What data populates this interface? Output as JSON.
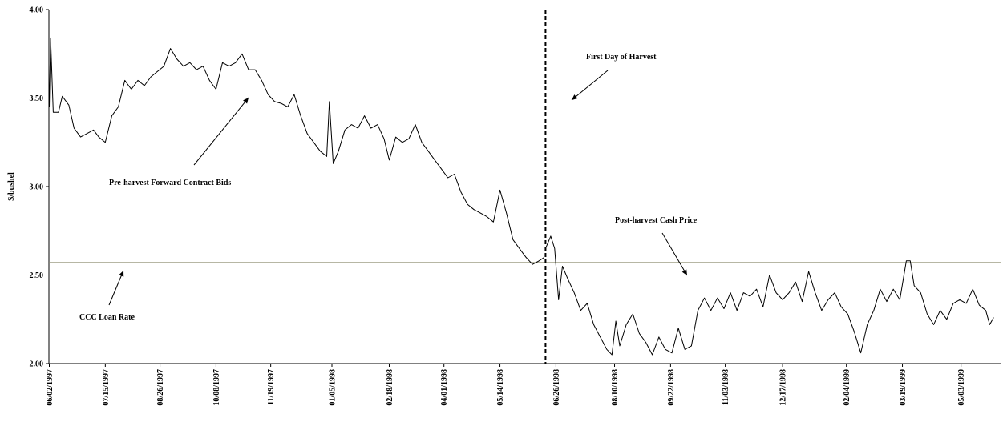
{
  "chart_data": {
    "type": "line",
    "title": "",
    "xlabel": "",
    "ylabel": "$/bushel",
    "ylim": [
      2.0,
      4.0
    ],
    "yticks": [
      "2.00",
      "2.50",
      "3.00",
      "3.50",
      "4.00"
    ],
    "xticks": [
      "06/02/1997",
      "07/15/1997",
      "08/26/1997",
      "10/08/1997",
      "11/19/1997",
      "01/05/1998",
      "02/18/1998",
      "04/01/1998",
      "05/14/1998",
      "06/26/1998",
      "08/10/1998",
      "09/22/1998",
      "11/03/1998",
      "12/17/1998",
      "02/04/1999",
      "03/19/1999",
      "05/03/1999"
    ],
    "grid": false,
    "loan_rate": 2.57,
    "harvest_date": "06/18/1998",
    "series": [
      {
        "name": "Pre-harvest Forward Contract Bids",
        "points": [
          [
            "06/02/1997",
            3.45
          ],
          [
            "06/03/1997",
            3.84
          ],
          [
            "06/05/1997",
            3.42
          ],
          [
            "06/09/1997",
            3.42
          ],
          [
            "06/12/1997",
            3.51
          ],
          [
            "06/17/1997",
            3.46
          ],
          [
            "06/21/1997",
            3.33
          ],
          [
            "06/26/1997",
            3.28
          ],
          [
            "07/01/1997",
            3.3
          ],
          [
            "07/06/1997",
            3.32
          ],
          [
            "07/10/1997",
            3.28
          ],
          [
            "07/15/1997",
            3.25
          ],
          [
            "07/20/1997",
            3.4
          ],
          [
            "07/25/1997",
            3.45
          ],
          [
            "07/30/1997",
            3.6
          ],
          [
            "08/04/1997",
            3.55
          ],
          [
            "08/09/1997",
            3.6
          ],
          [
            "08/14/1997",
            3.57
          ],
          [
            "08/19/1997",
            3.62
          ],
          [
            "08/24/1997",
            3.65
          ],
          [
            "08/29/1997",
            3.68
          ],
          [
            "09/03/1997",
            3.78
          ],
          [
            "09/08/1997",
            3.72
          ],
          [
            "09/13/1997",
            3.68
          ],
          [
            "09/18/1997",
            3.7
          ],
          [
            "09/23/1997",
            3.66
          ],
          [
            "09/28/1997",
            3.68
          ],
          [
            "10/03/1997",
            3.6
          ],
          [
            "10/08/1997",
            3.55
          ],
          [
            "10/13/1997",
            3.7
          ],
          [
            "10/18/1997",
            3.68
          ],
          [
            "10/23/1997",
            3.7
          ],
          [
            "10/28/1997",
            3.75
          ],
          [
            "11/02/1997",
            3.66
          ],
          [
            "11/07/1997",
            3.66
          ],
          [
            "11/12/1997",
            3.6
          ],
          [
            "11/17/1997",
            3.52
          ],
          [
            "11/22/1997",
            3.48
          ],
          [
            "11/27/1997",
            3.47
          ],
          [
            "12/02/1997",
            3.45
          ],
          [
            "12/07/1997",
            3.52
          ],
          [
            "12/12/1997",
            3.4
          ],
          [
            "12/17/1997",
            3.3
          ],
          [
            "12/22/1997",
            3.25
          ],
          [
            "12/27/1997",
            3.2
          ],
          [
            "01/01/1998",
            3.17
          ],
          [
            "01/03/1998",
            3.48
          ],
          [
            "01/06/1998",
            3.13
          ],
          [
            "01/10/1998",
            3.2
          ],
          [
            "01/15/1998",
            3.32
          ],
          [
            "01/20/1998",
            3.35
          ],
          [
            "01/25/1998",
            3.33
          ],
          [
            "01/30/1998",
            3.4
          ],
          [
            "02/04/1998",
            3.33
          ],
          [
            "02/09/1998",
            3.35
          ],
          [
            "02/14/1998",
            3.27
          ],
          [
            "02/18/1998",
            3.15
          ],
          [
            "02/23/1998",
            3.28
          ],
          [
            "02/28/1998",
            3.25
          ],
          [
            "03/05/1998",
            3.27
          ],
          [
            "03/10/1998",
            3.35
          ],
          [
            "03/15/1998",
            3.25
          ],
          [
            "03/20/1998",
            3.2
          ],
          [
            "03/25/1998",
            3.15
          ],
          [
            "03/30/1998",
            3.1
          ],
          [
            "04/04/1998",
            3.05
          ],
          [
            "04/09/1998",
            3.07
          ],
          [
            "04/14/1998",
            2.97
          ],
          [
            "04/19/1998",
            2.9
          ],
          [
            "04/24/1998",
            2.87
          ],
          [
            "04/29/1998",
            2.85
          ],
          [
            "05/04/1998",
            2.83
          ],
          [
            "05/09/1998",
            2.8
          ],
          [
            "05/14/1998",
            2.98
          ],
          [
            "05/19/1998",
            2.85
          ],
          [
            "05/24/1998",
            2.7
          ],
          [
            "05/29/1998",
            2.65
          ],
          [
            "06/03/1998",
            2.6
          ],
          [
            "06/08/1998",
            2.56
          ],
          [
            "06/13/1998",
            2.58
          ],
          [
            "06/17/1998",
            2.6
          ]
        ]
      },
      {
        "name": "Post-harvest Cash Price",
        "points": [
          [
            "06/18/1998",
            2.65
          ],
          [
            "06/22/1998",
            2.72
          ],
          [
            "06/25/1998",
            2.65
          ],
          [
            "06/28/1998",
            2.36
          ],
          [
            "07/01/1998",
            2.55
          ],
          [
            "07/05/1998",
            2.48
          ],
          [
            "07/10/1998",
            2.4
          ],
          [
            "07/15/1998",
            2.3
          ],
          [
            "07/20/1998",
            2.34
          ],
          [
            "07/25/1998",
            2.22
          ],
          [
            "07/30/1998",
            2.15
          ],
          [
            "08/04/1998",
            2.08
          ],
          [
            "08/08/1998",
            2.05
          ],
          [
            "08/11/1998",
            2.24
          ],
          [
            "08/14/1998",
            2.1
          ],
          [
            "08/19/1998",
            2.22
          ],
          [
            "08/24/1998",
            2.28
          ],
          [
            "08/29/1998",
            2.17
          ],
          [
            "09/03/1998",
            2.12
          ],
          [
            "09/08/1998",
            2.05
          ],
          [
            "09/13/1998",
            2.15
          ],
          [
            "09/18/1998",
            2.08
          ],
          [
            "09/23/1998",
            2.06
          ],
          [
            "09/28/1998",
            2.2
          ],
          [
            "10/03/1998",
            2.08
          ],
          [
            "10/08/1998",
            2.1
          ],
          [
            "10/13/1998",
            2.3
          ],
          [
            "10/18/1998",
            2.37
          ],
          [
            "10/23/1998",
            2.3
          ],
          [
            "10/28/1998",
            2.37
          ],
          [
            "11/02/1998",
            2.31
          ],
          [
            "11/07/1998",
            2.4
          ],
          [
            "11/12/1998",
            2.3
          ],
          [
            "11/17/1998",
            2.4
          ],
          [
            "11/22/1998",
            2.38
          ],
          [
            "11/27/1998",
            2.42
          ],
          [
            "12/02/1998",
            2.32
          ],
          [
            "12/07/1998",
            2.5
          ],
          [
            "12/12/1998",
            2.4
          ],
          [
            "12/17/1998",
            2.36
          ],
          [
            "12/22/1998",
            2.4
          ],
          [
            "12/27/1998",
            2.46
          ],
          [
            "01/01/1999",
            2.35
          ],
          [
            "01/06/1999",
            2.52
          ],
          [
            "01/11/1999",
            2.4
          ],
          [
            "01/16/1999",
            2.3
          ],
          [
            "01/21/1999",
            2.36
          ],
          [
            "01/26/1999",
            2.4
          ],
          [
            "01/31/1999",
            2.32
          ],
          [
            "02/05/1999",
            2.28
          ],
          [
            "02/10/1999",
            2.18
          ],
          [
            "02/15/1999",
            2.06
          ],
          [
            "02/20/1999",
            2.22
          ],
          [
            "02/25/1999",
            2.3
          ],
          [
            "03/02/1999",
            2.42
          ],
          [
            "03/07/1999",
            2.35
          ],
          [
            "03/12/1999",
            2.42
          ],
          [
            "03/17/1999",
            2.36
          ],
          [
            "03/22/1999",
            2.58
          ],
          [
            "03/25/1999",
            2.58
          ],
          [
            "03/28/1999",
            2.44
          ],
          [
            "04/02/1999",
            2.4
          ],
          [
            "04/07/1999",
            2.28
          ],
          [
            "04/12/1999",
            2.22
          ],
          [
            "04/17/1999",
            2.3
          ],
          [
            "04/22/1999",
            2.25
          ],
          [
            "04/27/1999",
            2.34
          ],
          [
            "05/02/1999",
            2.36
          ],
          [
            "05/07/1999",
            2.34
          ],
          [
            "05/12/1999",
            2.42
          ],
          [
            "05/17/1999",
            2.33
          ],
          [
            "05/22/1999",
            2.3
          ],
          [
            "05/25/1999",
            2.22
          ],
          [
            "05/28/1999",
            2.26
          ]
        ]
      }
    ],
    "annotations": {
      "harvest": "First Day of Harvest",
      "forward": "Pre-harvest Forward Contract Bids",
      "cash": "Post-harvest Cash Price",
      "loan": "CCC Loan Rate"
    }
  },
  "colors": {
    "series": "#000000",
    "loan_rate": "#8c8c6e",
    "axis": "#000000"
  }
}
